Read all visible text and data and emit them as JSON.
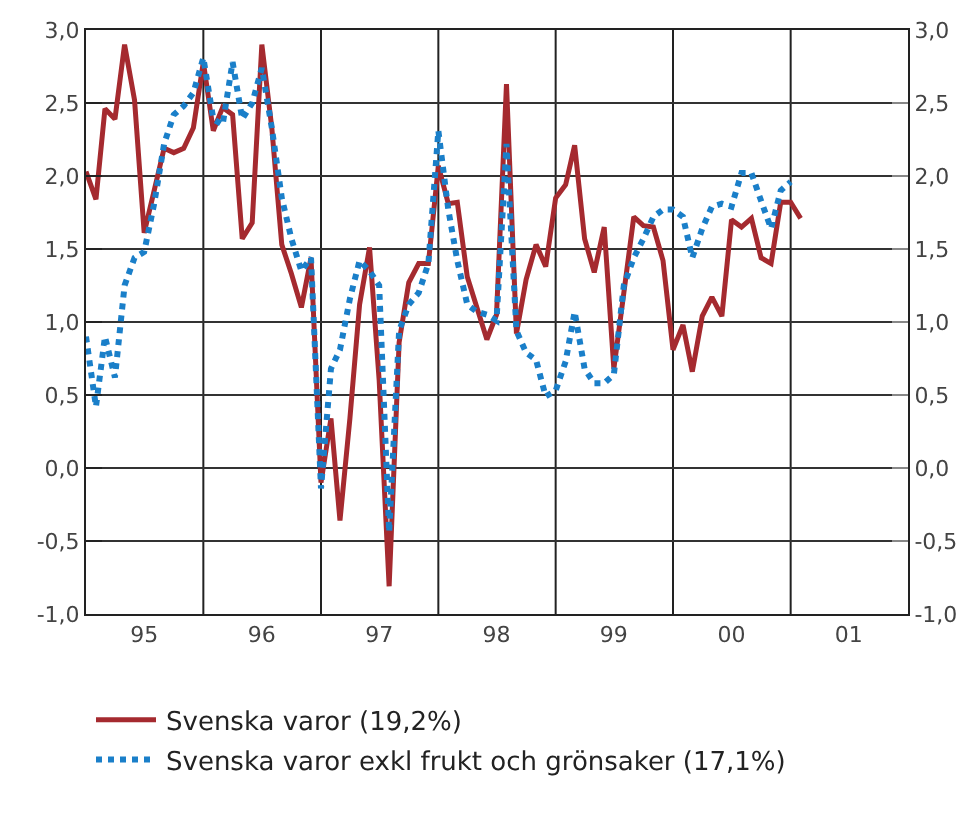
{
  "chart_data": {
    "type": "line",
    "x": [
      "1995-01",
      "1995-02",
      "1995-03",
      "1995-04",
      "1995-05",
      "1995-06",
      "1995-07",
      "1995-08",
      "1995-09",
      "1995-10",
      "1995-11",
      "1995-12",
      "1996-01",
      "1996-02",
      "1996-03",
      "1996-04",
      "1996-05",
      "1996-06",
      "1996-07",
      "1996-08",
      "1996-09",
      "1996-10",
      "1996-11",
      "1996-12",
      "1997-01",
      "1997-02",
      "1997-03",
      "1997-04",
      "1997-05",
      "1997-06",
      "1997-07",
      "1997-08",
      "1997-09",
      "1997-10",
      "1997-11",
      "1997-12",
      "1998-01",
      "1998-02",
      "1998-03",
      "1998-04",
      "1998-05",
      "1998-06",
      "1998-07",
      "1998-08",
      "1998-09",
      "1998-10",
      "1998-11",
      "1998-12",
      "1999-01",
      "1999-02",
      "1999-03",
      "1999-04",
      "1999-05",
      "1999-06",
      "1999-07",
      "1999-08",
      "1999-09",
      "1999-10",
      "1999-11",
      "1999-12",
      "2000-01",
      "2000-02",
      "2000-03",
      "2000-04",
      "2000-05",
      "2000-06",
      "2000-07",
      "2000-08",
      "2000-09",
      "2000-10",
      "2000-11",
      "2000-12",
      "2001-01",
      "2001-02"
    ],
    "series": [
      {
        "name": "Svenska varor (19,2%)",
        "color": "#a52a2f",
        "line_style": "solid",
        "values": [
          2.03,
          1.84,
          2.46,
          2.39,
          2.9,
          2.52,
          1.61,
          1.9,
          2.19,
          2.16,
          2.19,
          2.33,
          2.78,
          2.31,
          2.47,
          2.42,
          1.57,
          1.68,
          2.9,
          2.33,
          1.53,
          1.33,
          1.1,
          1.44,
          -0.1,
          0.34,
          -0.36,
          0.34,
          1.12,
          1.51,
          0.6,
          -0.81,
          0.86,
          1.27,
          1.4,
          1.4,
          2.07,
          1.81,
          1.82,
          1.31,
          1.1,
          0.88,
          1.05,
          2.63,
          0.92,
          1.29,
          1.53,
          1.38,
          1.85,
          1.94,
          2.21,
          1.57,
          1.34,
          1.65,
          0.68,
          1.2,
          1.72,
          1.66,
          1.65,
          1.42,
          0.81,
          0.98,
          0.66,
          1.04,
          1.17,
          1.04,
          1.7,
          1.65,
          1.71,
          1.44,
          1.4,
          1.82,
          1.82,
          1.71
        ]
      },
      {
        "name": "Svenska varor exkl frukt och grönsaker (17,1%)",
        "color": "#1a7fc9",
        "line_style": "dotted",
        "values": [
          0.9,
          0.42,
          0.9,
          0.62,
          1.25,
          1.44,
          1.48,
          1.81,
          2.22,
          2.42,
          2.48,
          2.57,
          2.81,
          2.39,
          2.35,
          2.78,
          2.39,
          2.5,
          2.74,
          2.33,
          1.85,
          1.57,
          1.35,
          1.44,
          -0.14,
          0.68,
          0.81,
          1.16,
          1.42,
          1.35,
          1.25,
          -0.44,
          0.94,
          1.12,
          1.2,
          1.4,
          2.31,
          1.77,
          1.42,
          1.12,
          1.07,
          1.05,
          1.01,
          2.22,
          0.94,
          0.79,
          0.74,
          0.49,
          0.53,
          0.73,
          1.07,
          0.68,
          0.58,
          0.58,
          0.64,
          1.25,
          1.44,
          1.57,
          1.72,
          1.77,
          1.77,
          1.72,
          1.44,
          1.64,
          1.79,
          1.81,
          1.79,
          2.02,
          2.02,
          1.83,
          1.64,
          1.9,
          1.96,
          null
        ]
      }
    ],
    "xlim": [
      "1995-01",
      "2002-01"
    ],
    "xticks": [
      {
        "value": "1995-07",
        "label": "95"
      },
      {
        "value": "1996-07",
        "label": "96"
      },
      {
        "value": "1997-07",
        "label": "97"
      },
      {
        "value": "1998-07",
        "label": "98"
      },
      {
        "value": "1999-07",
        "label": "99"
      },
      {
        "value": "2000-07",
        "label": "00"
      },
      {
        "value": "2001-07",
        "label": "01"
      }
    ],
    "ylim": [
      -1,
      3
    ],
    "yticks": [
      {
        "value": -1,
        "label": "-1,0"
      },
      {
        "value": -0.5,
        "label": "-0,5"
      },
      {
        "value": 0,
        "label": "0,0"
      },
      {
        "value": 0.5,
        "label": "0,5"
      },
      {
        "value": 1,
        "label": "1,0"
      },
      {
        "value": 1.5,
        "label": "1,5"
      },
      {
        "value": 2,
        "label": "2,0"
      },
      {
        "value": 2.5,
        "label": "2,5"
      },
      {
        "value": 3,
        "label": "3,0"
      }
    ],
    "y2lim": [
      -1,
      3
    ],
    "y2ticks": [
      {
        "value": -1,
        "label": "-1,0"
      },
      {
        "value": -0.5,
        "label": "-0,5"
      },
      {
        "value": 0,
        "label": "0,0"
      },
      {
        "value": 0.5,
        "label": "0,5"
      },
      {
        "value": 1,
        "label": "1,0"
      },
      {
        "value": 1.5,
        "label": "1,5"
      },
      {
        "value": 2,
        "label": "2,0"
      },
      {
        "value": 2.5,
        "label": "2,5"
      },
      {
        "value": 3,
        "label": "3,0"
      }
    ],
    "grid": true,
    "legend": "bottom",
    "marker": "none"
  }
}
